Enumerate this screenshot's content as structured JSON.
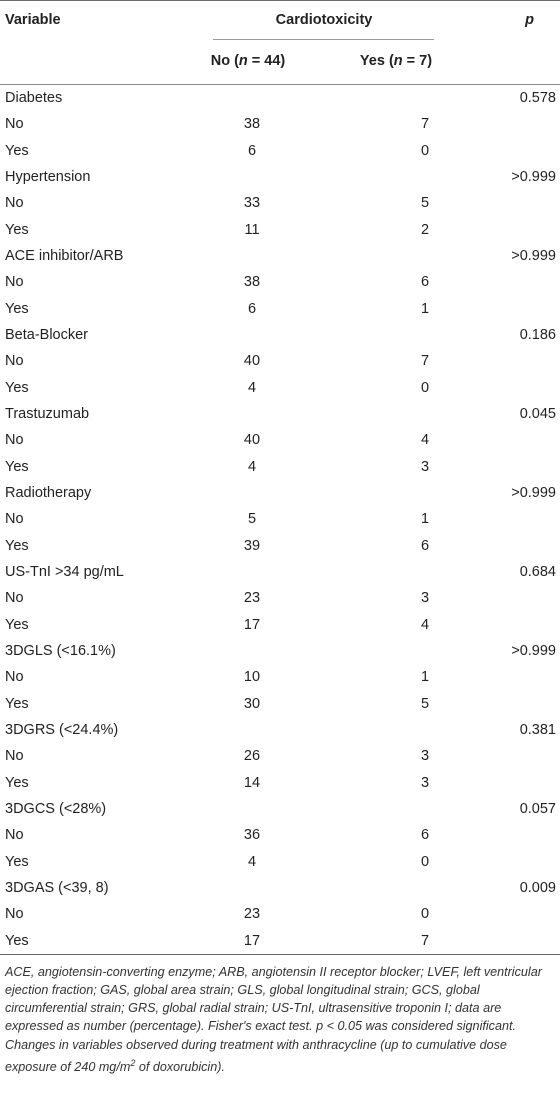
{
  "header": {
    "variable": "Variable",
    "cardiotoxicity": "Cardiotoxicity",
    "p": "p",
    "no_prefix": "No (",
    "no_n": "n",
    "no_suffix": " = 44)",
    "yes_prefix": "Yes (",
    "yes_n": "n",
    "yes_suffix": " = 7)"
  },
  "rows": [
    {
      "label": "Diabetes",
      "no": "",
      "yes": "",
      "p": "0.578"
    },
    {
      "label": "No",
      "no": "38",
      "yes": "7",
      "p": ""
    },
    {
      "label": "Yes",
      "no": "6",
      "yes": "0",
      "p": ""
    },
    {
      "label": "Hypertension",
      "no": "",
      "yes": "",
      "p": ">0.999"
    },
    {
      "label": "No",
      "no": "33",
      "yes": "5",
      "p": ""
    },
    {
      "label": "Yes",
      "no": "11",
      "yes": "2",
      "p": ""
    },
    {
      "label": "ACE inhibitor/ARB",
      "no": "",
      "yes": "",
      "p": ">0.999"
    },
    {
      "label": "No",
      "no": "38",
      "yes": "6",
      "p": ""
    },
    {
      "label": "Yes",
      "no": "6",
      "yes": "1",
      "p": ""
    },
    {
      "label": "Beta-Blocker",
      "no": "",
      "yes": "",
      "p": "0.186"
    },
    {
      "label": "No",
      "no": "40",
      "yes": "7",
      "p": ""
    },
    {
      "label": "Yes",
      "no": "4",
      "yes": "0",
      "p": ""
    },
    {
      "label": "Trastuzumab",
      "no": "",
      "yes": "",
      "p": "0.045"
    },
    {
      "label": "No",
      "no": "40",
      "yes": "4",
      "p": ""
    },
    {
      "label": "Yes",
      "no": "4",
      "yes": "3",
      "p": ""
    },
    {
      "label": "Radiotherapy",
      "no": "",
      "yes": "",
      "p": ">0.999"
    },
    {
      "label": "No",
      "no": "5",
      "yes": "1",
      "p": ""
    },
    {
      "label": "Yes",
      "no": "39",
      "yes": "6",
      "p": ""
    },
    {
      "label": "US-TnI >34 pg/mL",
      "no": "",
      "yes": "",
      "p": "0.684"
    },
    {
      "label": "No",
      "no": "23",
      "yes": "3",
      "p": ""
    },
    {
      "label": "Yes",
      "no": "17",
      "yes": "4",
      "p": ""
    },
    {
      "label": "3DGLS (<16.1%)",
      "no": "",
      "yes": "",
      "p": ">0.999"
    },
    {
      "label": "No",
      "no": "10",
      "yes": "1",
      "p": ""
    },
    {
      "label": "Yes",
      "no": "30",
      "yes": "5",
      "p": ""
    },
    {
      "label": "3DGRS (<24.4%)",
      "no": "",
      "yes": "",
      "p": "0.381"
    },
    {
      "label": "No",
      "no": "26",
      "yes": "3",
      "p": ""
    },
    {
      "label": "Yes",
      "no": "14",
      "yes": "3",
      "p": ""
    },
    {
      "label": "3DGCS (<28%)",
      "no": "",
      "yes": "",
      "p": "0.057"
    },
    {
      "label": "No",
      "no": "36",
      "yes": "6",
      "p": ""
    },
    {
      "label": "Yes",
      "no": "4",
      "yes": "0",
      "p": ""
    },
    {
      "label": "3DGAS (<39, 8)",
      "no": "",
      "yes": "",
      "p": "0.009"
    },
    {
      "label": "No",
      "no": "23",
      "yes": "0",
      "p": ""
    },
    {
      "label": "Yes",
      "no": "17",
      "yes": "7",
      "p": ""
    }
  ],
  "footnote": {
    "main": "ACE, angiotensin-converting enzyme; ARB, angiotensin II receptor blocker; LVEF, left ventricular ejection fraction; GAS, global area strain; GLS, global longitudinal strain; GCS, global circumferential strain; GRS, global radial strain; US-TnI, ultrasensitive troponin I; data are expressed as number (percentage). Fisher's exact test. p < 0.05 was considered significant. Changes in variables observed during treatment with anthracycline (up to cumulative dose exposure of 240 mg/m",
    "sup": "2",
    "tail": " of doxorubicin)."
  }
}
